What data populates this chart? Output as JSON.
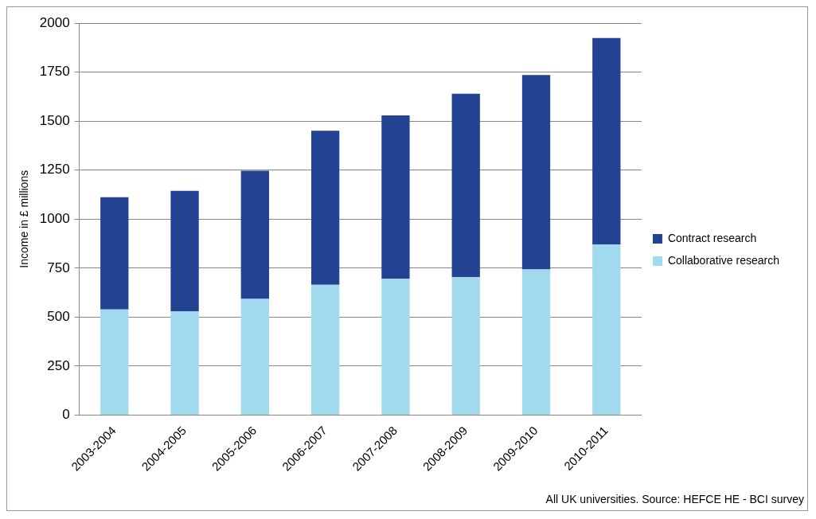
{
  "chart_data": {
    "type": "bar",
    "stacked": true,
    "categories": [
      "2003-2004",
      "2004-2005",
      "2005-2006",
      "2006-2007",
      "2007-2008",
      "2008-2009",
      "2009-2010",
      "2010-2011"
    ],
    "series": [
      {
        "name": "Collaborative research",
        "color": "#a1daee",
        "values": [
          539,
          530,
          593,
          665,
          697,
          704,
          743,
          871
        ]
      },
      {
        "name": "Contract research",
        "color": "#234292",
        "values": [
          573,
          614,
          654,
          786,
          832,
          936,
          992,
          1053
        ]
      }
    ],
    "ylabel": "Income in £ millions",
    "ylim": [
      0,
      2000
    ],
    "yticks": [
      0,
      250,
      500,
      750,
      1000,
      1250,
      1500,
      1750,
      2000
    ],
    "grid": "y",
    "legend": "right",
    "annotations": [
      "All UK universities. Source: HEFCE HE - BCI survey"
    ]
  }
}
